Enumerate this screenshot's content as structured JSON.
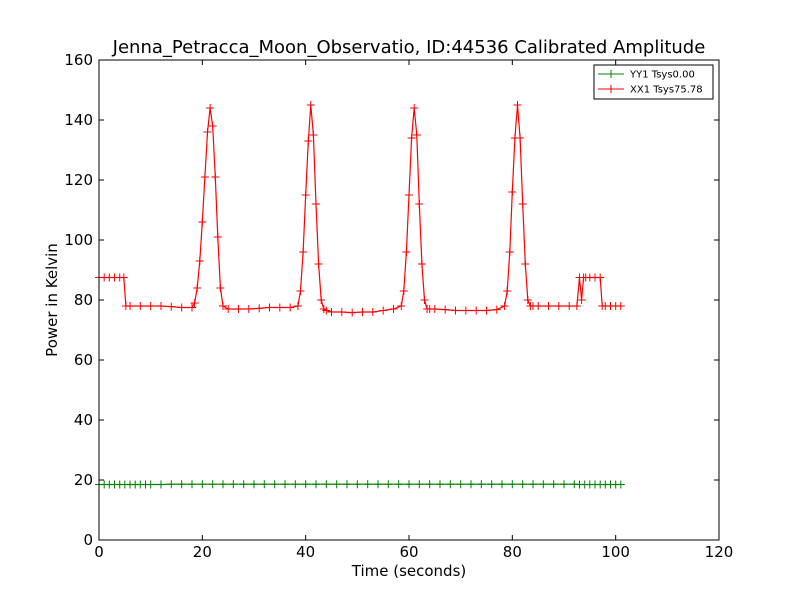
{
  "chart_data": {
    "type": "line",
    "title": "Jenna_Petracca_Moon_Observatio, ID:44536 Calibrated Amplitude",
    "xlabel": "Time (seconds)",
    "ylabel": "Power in Kelvin",
    "xlim": [
      0,
      120
    ],
    "ylim": [
      0,
      160
    ],
    "xticks": [
      0,
      20,
      40,
      60,
      80,
      100,
      120
    ],
    "yticks": [
      0,
      20,
      40,
      60,
      80,
      100,
      120,
      140,
      160
    ],
    "grid": false,
    "legend_position": "top-right",
    "series": [
      {
        "name": "YY1 Tsys0.00",
        "color": "#008000",
        "marker": "plus",
        "x": [
          0,
          1,
          2,
          3,
          4,
          5,
          6,
          7,
          8,
          9,
          10,
          12,
          14,
          16,
          18,
          20,
          22,
          24,
          26,
          28,
          30,
          32,
          34,
          36,
          38,
          40,
          42,
          44,
          46,
          48,
          50,
          52,
          54,
          56,
          58,
          60,
          62,
          64,
          66,
          68,
          70,
          72,
          74,
          76,
          78,
          80,
          82,
          84,
          86,
          88,
          90,
          92,
          93,
          94,
          95,
          96,
          97,
          98,
          99,
          100,
          101
        ],
        "y": [
          18.5,
          18.5,
          18.5,
          18.5,
          18.5,
          18.5,
          18.5,
          18.5,
          18.5,
          18.5,
          18.5,
          18.5,
          18.6,
          18.6,
          18.6,
          18.6,
          18.6,
          18.6,
          18.6,
          18.6,
          18.6,
          18.6,
          18.6,
          18.6,
          18.6,
          18.6,
          18.6,
          18.6,
          18.6,
          18.6,
          18.6,
          18.6,
          18.6,
          18.6,
          18.6,
          18.6,
          18.6,
          18.6,
          18.6,
          18.6,
          18.6,
          18.6,
          18.6,
          18.6,
          18.6,
          18.6,
          18.6,
          18.6,
          18.6,
          18.6,
          18.6,
          18.6,
          18.5,
          18.5,
          18.5,
          18.5,
          18.5,
          18.5,
          18.5,
          18.5,
          18.5
        ]
      },
      {
        "name": "XX1 Tsys75.78",
        "color": "#ff0000",
        "marker": "plus",
        "x": [
          0,
          1,
          2,
          3,
          4,
          4.8,
          5.2,
          6,
          8,
          10,
          12,
          14,
          16,
          18,
          18.5,
          19,
          19.5,
          20,
          20.5,
          21,
          21.5,
          22,
          22.5,
          23,
          23.5,
          24,
          25,
          27,
          29,
          31,
          33,
          35,
          37,
          38.5,
          39,
          39.5,
          40,
          40.5,
          41,
          41.5,
          42,
          42.5,
          43,
          43.5,
          44,
          45,
          47,
          49,
          51,
          53,
          55,
          57,
          58.5,
          59,
          59.5,
          60,
          60.5,
          61,
          61.5,
          62,
          62.5,
          63,
          63.5,
          64,
          65,
          67,
          69,
          71,
          73,
          75,
          77,
          78.5,
          79,
          79.5,
          80,
          80.5,
          81,
          81.5,
          82,
          82.5,
          83,
          83.5,
          84,
          85,
          87,
          89,
          91,
          92.5,
          93,
          93.4,
          93.8,
          94.2,
          95,
          96,
          97,
          97.4,
          98,
          99,
          100,
          101
        ],
        "y": [
          87.5,
          87.5,
          87.5,
          87.5,
          87.5,
          87.5,
          78,
          78,
          78,
          78,
          78,
          77.8,
          77.5,
          77.5,
          79,
          84,
          93,
          106,
          121,
          136,
          144,
          138,
          121,
          101,
          84,
          78,
          77,
          77,
          77,
          77.2,
          77.5,
          77.5,
          77.5,
          78,
          83,
          96,
          115,
          133,
          145,
          135,
          112,
          92,
          80,
          77,
          76.5,
          76,
          76,
          75.8,
          76,
          76,
          76.5,
          77,
          78,
          83,
          96,
          115,
          134,
          144,
          135,
          112,
          92,
          80,
          77,
          77,
          77,
          76.8,
          76.5,
          76.5,
          76.5,
          76.5,
          76.8,
          78,
          83,
          96,
          116,
          134,
          145,
          134,
          112,
          92,
          80,
          78,
          78,
          78,
          78,
          78,
          78,
          78,
          87.5,
          80,
          87.5,
          87.5,
          87.5,
          87.5,
          87.5,
          78,
          78,
          78,
          78,
          78
        ]
      }
    ]
  }
}
